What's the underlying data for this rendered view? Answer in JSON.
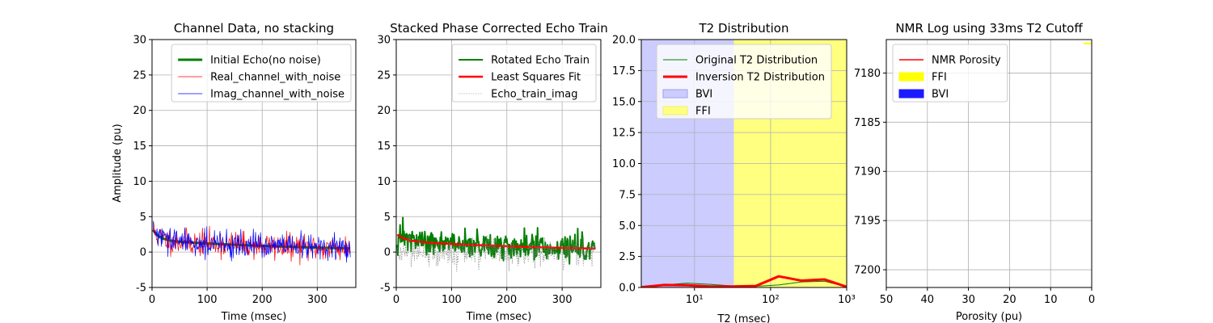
{
  "colors": {
    "green": "#007f00",
    "red": "#ff0000",
    "blue": "#0000ff",
    "gray": "#808080",
    "bvi_fill": "#ccccff",
    "ffi_fill": "#ffff80",
    "ffi_legend": "#ffff00",
    "bvi_legend": "#1a1aff",
    "grid": "#b0b0b0"
  },
  "chart_data": [
    {
      "type": "line",
      "title": "Channel Data, no stacking",
      "xlabel": "Time (msec)",
      "ylabel": "Amplitude (pu)",
      "xlim": [
        0,
        370
      ],
      "ylim": [
        -5,
        30
      ],
      "xticks": [
        0,
        100,
        200,
        300
      ],
      "yticks": [
        -5,
        0,
        5,
        10,
        15,
        20,
        25,
        30
      ],
      "grid": true,
      "legend_position": "top-right",
      "series": [
        {
          "name": "Initial Echo(no noise)",
          "kind": "exp_decay",
          "a1": 1.7,
          "t1": 12,
          "a2": 1.7,
          "t2": 300,
          "t_end": 360,
          "color": "green",
          "width": 3
        },
        {
          "name": "Real_channel_with_noise",
          "kind": "noisy_decay",
          "a1": 1.7,
          "t1": 12,
          "a2": 1.7,
          "t2": 300,
          "t_end": 360,
          "noise": 0.9,
          "seed": 11,
          "color": "red",
          "width": 0.7
        },
        {
          "name": "Imag_channel_with_noise",
          "kind": "noisy_decay",
          "a1": 1.7,
          "t1": 12,
          "a2": 1.7,
          "t2": 300,
          "t_end": 360,
          "noise": 0.9,
          "seed": 29,
          "color": "blue",
          "width": 0.7
        }
      ]
    },
    {
      "type": "line",
      "title": "Stacked Phase Corrected Echo Train",
      "xlabel": "Time (msec)",
      "ylabel": "",
      "xlim": [
        0,
        370
      ],
      "ylim": [
        -5,
        30
      ],
      "xticks": [
        0,
        100,
        200,
        300
      ],
      "yticks": [
        -5,
        0,
        5,
        10,
        15,
        20,
        25,
        30
      ],
      "grid": true,
      "legend_position": "top-right",
      "series": [
        {
          "name": "Rotated Echo Train",
          "kind": "noisy_decay",
          "a1": 1.0,
          "t1": 15,
          "a2": 1.6,
          "t2": 300,
          "t_end": 360,
          "noise": 0.9,
          "seed": 47,
          "color": "green",
          "width": 2
        },
        {
          "name": "Least Squares Fit",
          "kind": "exp_decay",
          "a1": 1.0,
          "t1": 15,
          "a2": 1.6,
          "t2": 300,
          "t_end": 360,
          "color": "red",
          "width": 2.5
        },
        {
          "name": "Echo_train_imag",
          "kind": "noisy_decay",
          "a1": 0,
          "t1": 1,
          "a2": 0,
          "t2": 1,
          "t_end": 360,
          "noise": 1.0,
          "seed": 83,
          "color": "gray",
          "width": 0.6,
          "dash": "1.5,1.5"
        }
      ]
    },
    {
      "type": "line",
      "title": "T2 Distribution",
      "xlabel": "T2 (msec)",
      "ylabel": "",
      "xscale": "log",
      "xlim": [
        2,
        1000
      ],
      "ylim": [
        0,
        20
      ],
      "xticks": [
        10,
        100,
        1000
      ],
      "xtick_labels": [
        "10¹",
        "10²",
        "10³"
      ],
      "yticks": [
        0.0,
        2.5,
        5.0,
        7.5,
        10.0,
        12.5,
        15.0,
        17.5,
        20.0
      ],
      "ytick_labels": [
        "0.0",
        "2.5",
        "5.0",
        "7.5",
        "10.0",
        "12.5",
        "15.0",
        "17.5",
        "20.0"
      ],
      "grid": true,
      "legend_position": "top-center",
      "shaded_regions": [
        {
          "name": "BVI",
          "x": [
            2,
            33
          ],
          "color": "bvi_fill"
        },
        {
          "name": "FFI",
          "x": [
            33,
            1000
          ],
          "color": "ffi_fill"
        }
      ],
      "series": [
        {
          "name": "Original T2 Distribution",
          "color": "green",
          "width": 1,
          "x": [
            2,
            4,
            8,
            16,
            32,
            64,
            128,
            256,
            512,
            1000
          ],
          "y": [
            0.05,
            0.2,
            0.35,
            0.25,
            0.12,
            0.1,
            0.2,
            0.45,
            0.5,
            0.05
          ]
        },
        {
          "name": "Inversion T2 Distribution",
          "color": "red",
          "width": 3,
          "x": [
            2,
            4,
            8,
            16,
            32,
            64,
            128,
            256,
            512,
            1000
          ],
          "y": [
            0.02,
            0.2,
            0.18,
            0.08,
            0.08,
            0.12,
            0.9,
            0.55,
            0.65,
            0.05
          ]
        }
      ]
    },
    {
      "type": "line",
      "title": "NMR Log using 33ms T2 Cutoff",
      "xlabel": "Porosity (pu)",
      "ylabel": "",
      "xlim": [
        50,
        0
      ],
      "ylim": [
        7201.8,
        7176.6
      ],
      "xticks": [
        50,
        40,
        30,
        20,
        10,
        0
      ],
      "yticks": [
        7180,
        7185,
        7190,
        7195,
        7200
      ],
      "grid": true,
      "legend_position": "top-left",
      "series": [
        {
          "name": "NMR Porosity",
          "color": "red",
          "width": 1.5,
          "x": [],
          "y": []
        }
      ],
      "legend_patches": [
        {
          "name": "FFI",
          "color": "ffi_legend"
        },
        {
          "name": "BVI",
          "color": "bvi_legend"
        }
      ],
      "fill_segments": [
        {
          "name": "FFI",
          "color": "ffi_legend",
          "x": [
            0,
            2
          ],
          "y": 7177.0
        }
      ]
    }
  ]
}
